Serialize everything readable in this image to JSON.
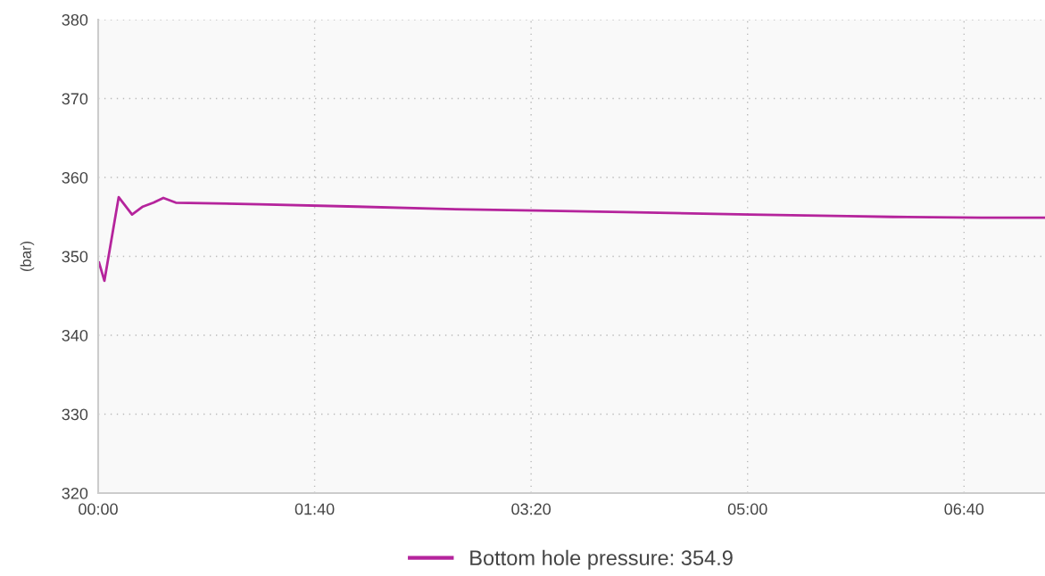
{
  "chart_data": {
    "type": "line",
    "ylabel": "(bar)",
    "x": [
      0.007,
      0.048,
      0.158,
      0.261,
      0.344,
      0.426,
      0.502,
      0.598,
      1.237,
      1.993,
      2.68,
      3.368,
      4.05,
      5.017,
      5.77,
      6.117,
      6.8,
      7.29
    ],
    "series": [
      {
        "name": "Bottom hole pressure: 354.9",
        "color": "#b5249c",
        "values": [
          349.2,
          346.9,
          357.5,
          355.3,
          356.3,
          356.8,
          357.4,
          356.8,
          356.6,
          356.3,
          356.0,
          355.8,
          355.6,
          355.3,
          355.1,
          355.0,
          354.9,
          354.9
        ]
      }
    ],
    "xlim": [
      0,
      7.29
    ],
    "xticks": [
      {
        "value": 0,
        "label": "00:00"
      },
      {
        "value": 1.6667,
        "label": "01:40"
      },
      {
        "value": 3.3333,
        "label": "03:20"
      },
      {
        "value": 5,
        "label": "05:00"
      },
      {
        "value": 6.6667,
        "label": "06:40"
      }
    ],
    "ylim": [
      320,
      380
    ],
    "yticks": [
      320,
      330,
      340,
      350,
      360,
      370,
      380
    ],
    "grid": true,
    "legend": "bottom",
    "marker": "none",
    "line_style": "solid"
  }
}
